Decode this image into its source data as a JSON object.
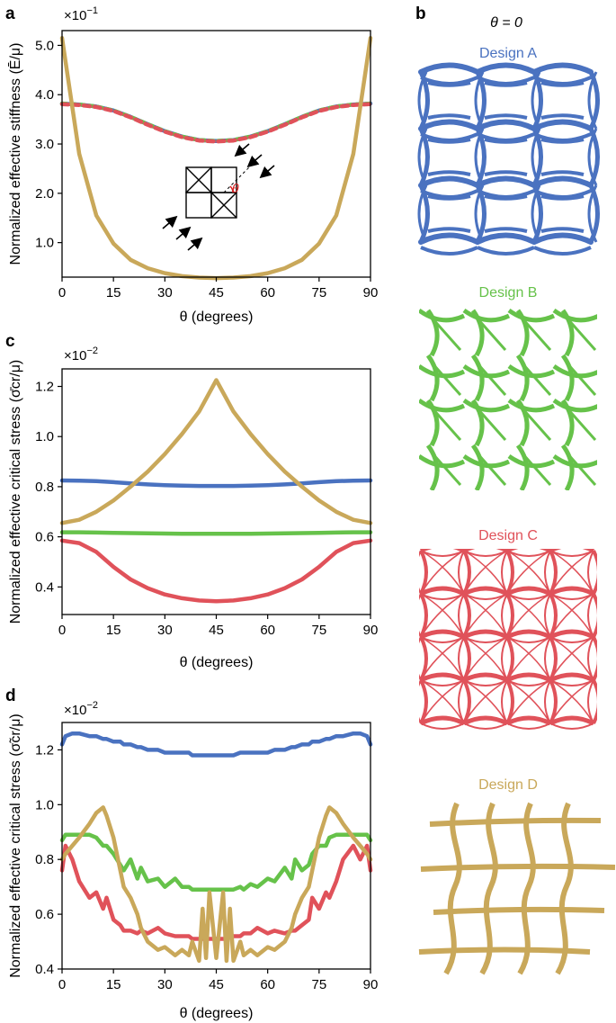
{
  "panel_labels": {
    "a": "a",
    "b": "b",
    "c": "c",
    "d": "d"
  },
  "panel_b": {
    "header": "θ = 0",
    "designs": [
      {
        "name": "Design A",
        "color": "#4a72c0"
      },
      {
        "name": "Design B",
        "color": "#66c24a"
      },
      {
        "name": "Design C",
        "color": "#e0525a"
      },
      {
        "name": "Design D",
        "color": "#c9a85a"
      }
    ]
  },
  "inset": {
    "theta_label": "θ",
    "arrow_color": "#000000",
    "angle_color": "#d62020"
  },
  "chart_data": [
    {
      "id": "a",
      "type": "line",
      "title": "",
      "xlabel": "θ (degrees)",
      "ylabel": "Normalized effective stiffness (Ē/μ)",
      "multiplier": "×10",
      "multiplier_exp": "−1",
      "xlim": [
        0,
        90
      ],
      "ylim": [
        0.3,
        5.3
      ],
      "xticks": [
        0,
        15,
        30,
        45,
        60,
        75,
        90
      ],
      "xtick_labels": [
        "0",
        "15",
        "30",
        "45",
        "60",
        "75",
        "90"
      ],
      "yticks": [
        1.0,
        2.0,
        3.0,
        4.0,
        5.0
      ],
      "ytick_labels": [
        "1.0",
        "2.0",
        "3.0",
        "4.0",
        "5.0"
      ],
      "x": [
        0,
        5,
        10,
        15,
        20,
        25,
        30,
        35,
        40,
        45,
        50,
        55,
        60,
        65,
        70,
        75,
        80,
        85,
        90
      ],
      "series": [
        {
          "name": "Design A",
          "color": "#4a72c0",
          "values": [
            3.82,
            3.8,
            3.76,
            3.68,
            3.55,
            3.4,
            3.26,
            3.15,
            3.08,
            3.06,
            3.08,
            3.15,
            3.26,
            3.4,
            3.55,
            3.68,
            3.76,
            3.8,
            3.82
          ]
        },
        {
          "name": "Design B",
          "color": "#66c24a",
          "dash": "5 5",
          "values": [
            3.82,
            3.8,
            3.76,
            3.68,
            3.55,
            3.4,
            3.26,
            3.15,
            3.08,
            3.06,
            3.08,
            3.15,
            3.26,
            3.4,
            3.55,
            3.68,
            3.76,
            3.8,
            3.82
          ]
        },
        {
          "name": "Design C",
          "color": "#e0525a",
          "dash": "7 5",
          "values": [
            3.81,
            3.79,
            3.75,
            3.67,
            3.54,
            3.39,
            3.25,
            3.14,
            3.07,
            3.05,
            3.07,
            3.14,
            3.25,
            3.39,
            3.54,
            3.67,
            3.75,
            3.79,
            3.81
          ]
        },
        {
          "name": "Design D",
          "color": "#c9a85a",
          "values": [
            5.15,
            2.8,
            1.55,
            0.98,
            0.65,
            0.48,
            0.38,
            0.32,
            0.29,
            0.28,
            0.29,
            0.32,
            0.38,
            0.48,
            0.65,
            0.98,
            1.55,
            2.8,
            5.15
          ]
        }
      ]
    },
    {
      "id": "c",
      "type": "line",
      "title": "",
      "xlabel": "θ (degrees)",
      "ylabel": "Normalized effective critical stress (σ̄cr/μ)",
      "multiplier": "×10",
      "multiplier_exp": "−2",
      "xlim": [
        0,
        90
      ],
      "ylim": [
        0.29,
        1.27
      ],
      "xticks": [
        0,
        15,
        30,
        45,
        60,
        75,
        90
      ],
      "xtick_labels": [
        "0",
        "15",
        "30",
        "45",
        "60",
        "75",
        "90"
      ],
      "yticks": [
        0.4,
        0.6,
        0.8,
        1.0,
        1.2
      ],
      "ytick_labels": [
        "0.4",
        "0.6",
        "0.8",
        "1.0",
        "1.2"
      ],
      "x": [
        0,
        5,
        10,
        15,
        20,
        25,
        30,
        35,
        40,
        45,
        50,
        55,
        60,
        65,
        70,
        75,
        80,
        85,
        90
      ],
      "series": [
        {
          "name": "Design A",
          "color": "#4a72c0",
          "values": [
            0.825,
            0.824,
            0.822,
            0.818,
            0.813,
            0.809,
            0.806,
            0.804,
            0.803,
            0.803,
            0.803,
            0.804,
            0.806,
            0.809,
            0.813,
            0.818,
            0.822,
            0.824,
            0.825
          ]
        },
        {
          "name": "Design B",
          "color": "#66c24a",
          "values": [
            0.618,
            0.618,
            0.617,
            0.616,
            0.615,
            0.614,
            0.613,
            0.612,
            0.612,
            0.612,
            0.612,
            0.612,
            0.613,
            0.614,
            0.615,
            0.616,
            0.617,
            0.618,
            0.618
          ]
        },
        {
          "name": "Design C",
          "color": "#e0525a",
          "values": [
            0.585,
            0.575,
            0.54,
            0.48,
            0.43,
            0.395,
            0.37,
            0.355,
            0.346,
            0.343,
            0.346,
            0.355,
            0.37,
            0.395,
            0.43,
            0.48,
            0.54,
            0.575,
            0.585
          ]
        },
        {
          "name": "Design D",
          "color": "#c9a85a",
          "values": [
            0.655,
            0.668,
            0.7,
            0.745,
            0.8,
            0.86,
            0.93,
            1.01,
            1.1,
            1.225,
            1.1,
            1.01,
            0.93,
            0.86,
            0.8,
            0.745,
            0.7,
            0.668,
            0.655
          ]
        }
      ]
    },
    {
      "id": "d",
      "type": "line",
      "title": "",
      "xlabel": "θ (degrees)",
      "ylabel": "Normalized effective critical stress (σ̃cr/μ)",
      "multiplier": "×10",
      "multiplier_exp": "−2",
      "xlim": [
        0,
        90
      ],
      "ylim": [
        0.4,
        1.3
      ],
      "xticks": [
        0,
        15,
        30,
        45,
        60,
        75,
        90
      ],
      "xtick_labels": [
        "0",
        "15",
        "30",
        "45",
        "60",
        "75",
        "90"
      ],
      "yticks": [
        0.4,
        0.6,
        0.8,
        1.0,
        1.2
      ],
      "ytick_labels": [
        "0.4",
        "0.6",
        "0.8",
        "1.0",
        "1.2"
      ],
      "x": [
        0,
        1,
        3,
        5,
        8,
        10,
        12,
        13,
        15,
        17,
        18,
        20,
        22,
        23,
        25,
        28,
        30,
        33,
        35,
        37,
        38,
        40,
        41,
        42,
        43,
        45,
        47,
        48,
        49,
        50,
        52,
        53,
        55,
        57,
        60,
        62,
        65,
        67,
        68,
        70,
        72,
        73,
        75,
        77,
        78,
        80,
        82,
        85,
        87,
        89,
        90
      ],
      "series": [
        {
          "name": "Design A",
          "color": "#4a72c0",
          "values": [
            1.22,
            1.25,
            1.26,
            1.26,
            1.25,
            1.25,
            1.24,
            1.24,
            1.23,
            1.23,
            1.22,
            1.22,
            1.21,
            1.21,
            1.2,
            1.2,
            1.19,
            1.19,
            1.19,
            1.19,
            1.18,
            1.18,
            1.18,
            1.18,
            1.18,
            1.18,
            1.18,
            1.18,
            1.18,
            1.18,
            1.19,
            1.19,
            1.19,
            1.19,
            1.19,
            1.2,
            1.2,
            1.21,
            1.21,
            1.22,
            1.22,
            1.23,
            1.23,
            1.24,
            1.24,
            1.25,
            1.25,
            1.26,
            1.26,
            1.25,
            1.22
          ]
        },
        {
          "name": "Design B",
          "color": "#66c24a",
          "values": [
            0.87,
            0.89,
            0.89,
            0.89,
            0.89,
            0.88,
            0.85,
            0.85,
            0.82,
            0.78,
            0.76,
            0.8,
            0.73,
            0.77,
            0.72,
            0.73,
            0.7,
            0.73,
            0.7,
            0.7,
            0.69,
            0.69,
            0.69,
            0.69,
            0.69,
            0.69,
            0.69,
            0.69,
            0.69,
            0.69,
            0.7,
            0.69,
            0.71,
            0.7,
            0.73,
            0.72,
            0.77,
            0.73,
            0.8,
            0.76,
            0.78,
            0.82,
            0.85,
            0.85,
            0.88,
            0.89,
            0.89,
            0.89,
            0.89,
            0.89,
            0.87
          ]
        },
        {
          "name": "Design C",
          "color": "#e0525a",
          "values": [
            0.76,
            0.85,
            0.8,
            0.72,
            0.66,
            0.68,
            0.62,
            0.66,
            0.58,
            0.56,
            0.54,
            0.54,
            0.53,
            0.54,
            0.53,
            0.55,
            0.53,
            0.52,
            0.52,
            0.52,
            0.51,
            0.51,
            0.51,
            0.51,
            0.51,
            0.51,
            0.51,
            0.51,
            0.52,
            0.52,
            0.52,
            0.53,
            0.53,
            0.55,
            0.53,
            0.54,
            0.53,
            0.54,
            0.54,
            0.56,
            0.58,
            0.66,
            0.62,
            0.68,
            0.66,
            0.72,
            0.8,
            0.85,
            0.8,
            0.85,
            0.76
          ]
        },
        {
          "name": "Design D",
          "color": "#c9a85a",
          "values": [
            0.8,
            0.82,
            0.85,
            0.88,
            0.93,
            0.97,
            0.99,
            0.96,
            0.88,
            0.76,
            0.7,
            0.66,
            0.6,
            0.55,
            0.5,
            0.47,
            0.48,
            0.45,
            0.47,
            0.45,
            0.5,
            0.43,
            0.62,
            0.44,
            0.68,
            0.44,
            0.68,
            0.43,
            0.62,
            0.43,
            0.5,
            0.45,
            0.47,
            0.45,
            0.48,
            0.47,
            0.5,
            0.55,
            0.6,
            0.66,
            0.7,
            0.76,
            0.88,
            0.96,
            0.99,
            0.97,
            0.93,
            0.88,
            0.85,
            0.82,
            0.8
          ]
        }
      ]
    }
  ]
}
